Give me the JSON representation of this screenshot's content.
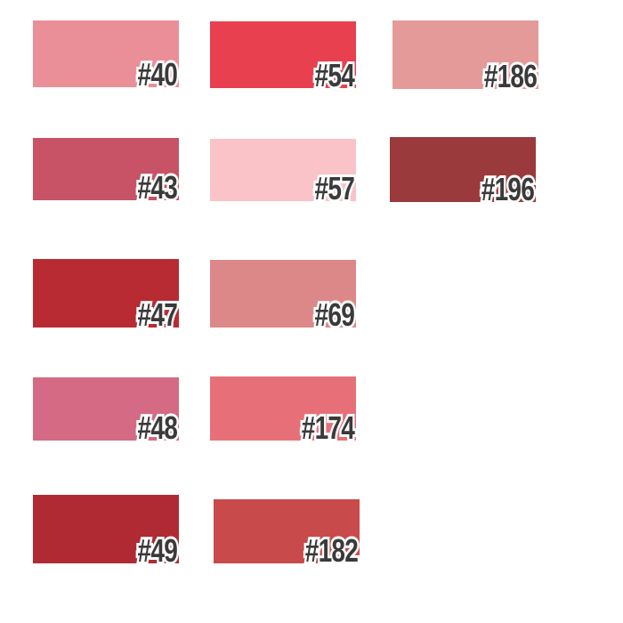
{
  "swatches": [
    {
      "label": "#40",
      "color": "#ea8f98"
    },
    {
      "label": "#54",
      "color": "#e8404f"
    },
    {
      "label": "#186",
      "color": "#e49a98"
    },
    {
      "label": "#43",
      "color": "#c85266"
    },
    {
      "label": "#57",
      "color": "#f9c3c7"
    },
    {
      "label": "#196",
      "color": "#9b3a3c"
    },
    {
      "label": "#47",
      "color": "#b92b33"
    },
    {
      "label": "#69",
      "color": "#dd8888"
    },
    {
      "label": "#48",
      "color": "#d46a84"
    },
    {
      "label": "#174",
      "color": "#e77078"
    },
    {
      "label": "#49",
      "color": "#b02a33"
    },
    {
      "label": "#182",
      "color": "#c84a4a"
    }
  ]
}
